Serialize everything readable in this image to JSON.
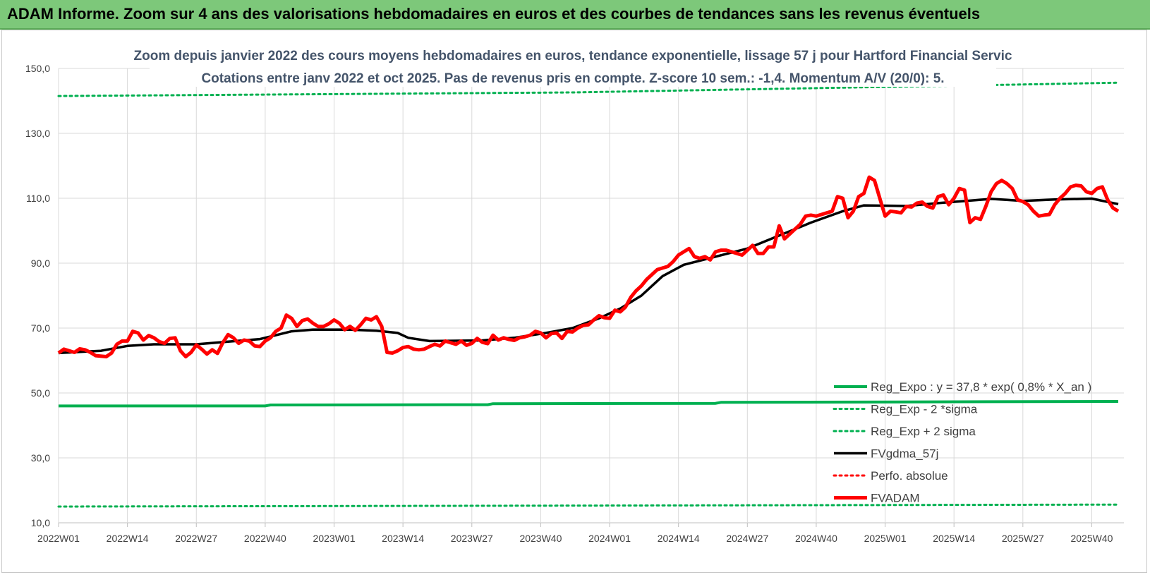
{
  "banner": {
    "title": "ADAM Informe. Zoom sur 4 ans des valorisations hebdomadaires en euros et des courbes de tendances sans les revenus éventuels"
  },
  "colors": {
    "banner_bg": "#7dc87a",
    "reg_expo": "#00b050",
    "sigma": "#00b050",
    "fvgdma": "#000000",
    "perfo": "#ff0000",
    "fvadam": "#ff0000",
    "grid": "#d9d9d9"
  },
  "chart_data": {
    "type": "line",
    "title_line1": "Zoom depuis janvier 2022 des cours moyens hebdomadaires en euros, tendance exponentielle, lissage 57 j pour Hartford Financial Servic",
    "title_line2": "Cotations entre janv 2022 et oct 2025. Pas de revenus pris en compte. Z-score 10 sem.: -1,4.  Momentum A/V (20/0): 5.",
    "ylim": [
      10,
      150
    ],
    "y_ticks": [
      "150,0",
      "130,0",
      "110,0",
      "90,0",
      "70,0",
      "50,0",
      "30,0",
      "10,0"
    ],
    "y_tick_values": [
      150,
      130,
      110,
      90,
      70,
      50,
      30,
      10
    ],
    "x_ticks": [
      "2022W01",
      "2022W14",
      "2022W27",
      "2022W40",
      "2023W01",
      "2023W14",
      "2023W27",
      "2023W40",
      "2024W01",
      "2024W14",
      "2024W27",
      "2024W40",
      "2025W01",
      "2025W14",
      "2025W27",
      "2025W40"
    ],
    "x_tick_index": [
      0,
      13,
      26,
      39,
      52,
      65,
      78,
      91,
      104,
      117,
      130,
      143,
      156,
      169,
      182,
      195
    ],
    "n_points": 201,
    "series": [
      {
        "name": "Reg_Expo : y = 37,8 * exp( 0,8% * X_an )",
        "style": "solid-green",
        "values": [
          [
            0,
            46.0
          ],
          [
            39,
            46.0
          ],
          [
            40,
            46.3
          ],
          [
            81,
            46.4
          ],
          [
            82,
            46.7
          ],
          [
            124,
            46.8
          ],
          [
            125,
            47.1
          ],
          [
            200,
            47.4
          ]
        ]
      },
      {
        "name": "Reg_Exp - 2 *sigma",
        "style": "dotted-green",
        "values": [
          [
            0,
            15.0
          ],
          [
            100,
            15.3
          ],
          [
            200,
            15.6
          ]
        ]
      },
      {
        "name": "Reg_Exp + 2 sigma",
        "style": "dotted-green",
        "values": [
          [
            0,
            141.5
          ],
          [
            97,
            142.6
          ],
          [
            180,
            145.0
          ],
          [
            200,
            145.6
          ]
        ]
      },
      {
        "name": "FVgdma_57j",
        "style": "solid-black",
        "values": [
          [
            0,
            62.3
          ],
          [
            8,
            63.0
          ],
          [
            13,
            64.5
          ],
          [
            18,
            65.0
          ],
          [
            26,
            65.0
          ],
          [
            32,
            65.8
          ],
          [
            38,
            66.6
          ],
          [
            44,
            69.0
          ],
          [
            48,
            69.5
          ],
          [
            55,
            69.5
          ],
          [
            60,
            69.2
          ],
          [
            64,
            68.5
          ],
          [
            66,
            67.0
          ],
          [
            70,
            66.0
          ],
          [
            80,
            66.2
          ],
          [
            86,
            67.0
          ],
          [
            92,
            68.5
          ],
          [
            97,
            70.0
          ],
          [
            102,
            73.0
          ],
          [
            106,
            76.0
          ],
          [
            110,
            80.0
          ],
          [
            114,
            86.0
          ],
          [
            118,
            89.5
          ],
          [
            124,
            92.0
          ],
          [
            130,
            94.5
          ],
          [
            136,
            98.5
          ],
          [
            142,
            102.5
          ],
          [
            148,
            106.0
          ],
          [
            152,
            107.8
          ],
          [
            160,
            107.6
          ],
          [
            166,
            108.5
          ],
          [
            176,
            109.8
          ],
          [
            182,
            109.2
          ],
          [
            188,
            109.6
          ],
          [
            195,
            109.9
          ],
          [
            200,
            108.2
          ]
        ]
      },
      {
        "name": "Perfo. absolue",
        "style": "dotted-red",
        "values": []
      },
      {
        "name": "FVADAM",
        "style": "solid-red-thick",
        "values": [
          [
            0,
            62.3
          ],
          [
            1,
            63.5
          ],
          [
            3,
            62.5
          ],
          [
            4,
            63.6
          ],
          [
            5,
            63.3
          ],
          [
            6,
            62.5
          ],
          [
            7,
            61.5
          ],
          [
            9,
            61.2
          ],
          [
            10,
            62.3
          ],
          [
            11,
            65.0
          ],
          [
            12,
            66.0
          ],
          [
            13,
            66.0
          ],
          [
            14,
            69.0
          ],
          [
            15,
            68.5
          ],
          [
            16,
            66.3
          ],
          [
            17,
            67.7
          ],
          [
            18,
            67.0
          ],
          [
            19,
            65.8
          ],
          [
            20,
            65.3
          ],
          [
            21,
            66.8
          ],
          [
            22,
            67.0
          ],
          [
            23,
            63.0
          ],
          [
            24,
            61.2
          ],
          [
            25,
            62.5
          ],
          [
            26,
            64.8
          ],
          [
            27,
            63.5
          ],
          [
            28,
            62.0
          ],
          [
            29,
            63.3
          ],
          [
            30,
            62.2
          ],
          [
            31,
            65.5
          ],
          [
            32,
            68.0
          ],
          [
            33,
            67.0
          ],
          [
            34,
            65.3
          ],
          [
            35,
            66.3
          ],
          [
            36,
            66.0
          ],
          [
            37,
            64.5
          ],
          [
            38,
            64.3
          ],
          [
            39,
            66.0
          ],
          [
            40,
            67.0
          ],
          [
            41,
            69.0
          ],
          [
            42,
            70.0
          ],
          [
            43,
            74.0
          ],
          [
            44,
            73.0
          ],
          [
            45,
            70.5
          ],
          [
            46,
            72.3
          ],
          [
            47,
            72.8
          ],
          [
            48,
            71.5
          ],
          [
            49,
            70.5
          ],
          [
            50,
            70.5
          ],
          [
            51,
            71.3
          ],
          [
            52,
            72.5
          ],
          [
            53,
            71.5
          ],
          [
            54,
            69.5
          ],
          [
            55,
            70.5
          ],
          [
            56,
            69.3
          ],
          [
            57,
            71.0
          ],
          [
            58,
            73.0
          ],
          [
            59,
            72.5
          ],
          [
            60,
            73.5
          ],
          [
            61,
            70.5
          ],
          [
            62,
            62.5
          ],
          [
            63,
            62.3
          ],
          [
            64,
            63.0
          ],
          [
            65,
            64.0
          ],
          [
            66,
            64.3
          ],
          [
            67,
            63.5
          ],
          [
            68,
            63.3
          ],
          [
            69,
            63.5
          ],
          [
            70,
            64.3
          ],
          [
            71,
            65.0
          ],
          [
            72,
            64.5
          ],
          [
            73,
            66.0
          ],
          [
            74,
            65.5
          ],
          [
            75,
            65.0
          ],
          [
            76,
            66.0
          ],
          [
            77,
            64.7
          ],
          [
            78,
            65.3
          ],
          [
            79,
            66.8
          ],
          [
            80,
            65.6
          ],
          [
            81,
            65.2
          ],
          [
            82,
            67.8
          ],
          [
            83,
            66.3
          ],
          [
            84,
            67.0
          ],
          [
            85,
            66.5
          ],
          [
            86,
            66.2
          ],
          [
            87,
            67.0
          ],
          [
            88,
            67.3
          ],
          [
            89,
            67.8
          ],
          [
            90,
            69.0
          ],
          [
            91,
            68.5
          ],
          [
            92,
            67.0
          ],
          [
            93,
            68.3
          ],
          [
            94,
            68.5
          ],
          [
            95,
            66.8
          ],
          [
            96,
            69.0
          ],
          [
            97,
            68.8
          ],
          [
            98,
            70.0
          ],
          [
            99,
            70.8
          ],
          [
            100,
            71.0
          ],
          [
            101,
            72.5
          ],
          [
            102,
            73.8
          ],
          [
            103,
            73.2
          ],
          [
            104,
            73.0
          ],
          [
            105,
            75.5
          ],
          [
            106,
            75.0
          ],
          [
            107,
            76.5
          ],
          [
            108,
            79.5
          ],
          [
            109,
            81.5
          ],
          [
            110,
            83.0
          ],
          [
            111,
            85.0
          ],
          [
            112,
            86.5
          ],
          [
            113,
            88.0
          ],
          [
            114,
            88.5
          ],
          [
            115,
            89.0
          ],
          [
            116,
            90.5
          ],
          [
            117,
            92.5
          ],
          [
            118,
            93.5
          ],
          [
            119,
            94.5
          ],
          [
            120,
            92.0
          ],
          [
            121,
            91.5
          ],
          [
            122,
            92.0
          ],
          [
            123,
            91.0
          ],
          [
            124,
            93.5
          ],
          [
            125,
            94.0
          ],
          [
            126,
            94.0
          ],
          [
            127,
            93.5
          ],
          [
            128,
            93.0
          ],
          [
            129,
            92.5
          ],
          [
            130,
            94.0
          ],
          [
            131,
            95.5
          ],
          [
            132,
            93.0
          ],
          [
            133,
            93.0
          ],
          [
            134,
            95.0
          ],
          [
            135,
            95.0
          ],
          [
            136,
            101.5
          ],
          [
            137,
            97.5
          ],
          [
            138,
            99.0
          ],
          [
            139,
            100.5
          ],
          [
            140,
            102.0
          ],
          [
            141,
            104.5
          ],
          [
            142,
            104.8
          ],
          [
            143,
            104.5
          ],
          [
            144,
            105.0
          ],
          [
            145,
            105.5
          ],
          [
            146,
            106.0
          ],
          [
            147,
            110.5
          ],
          [
            148,
            110.0
          ],
          [
            149,
            104.0
          ],
          [
            150,
            106.0
          ],
          [
            151,
            110.5
          ],
          [
            152,
            111.5
          ],
          [
            153,
            116.5
          ],
          [
            154,
            115.5
          ],
          [
            155,
            110.0
          ],
          [
            156,
            104.5
          ],
          [
            157,
            106.0
          ],
          [
            158,
            105.8
          ],
          [
            159,
            105.5
          ],
          [
            160,
            107.5
          ],
          [
            161,
            107.3
          ],
          [
            162,
            108.5
          ],
          [
            163,
            108.8
          ],
          [
            164,
            107.5
          ],
          [
            165,
            107.0
          ],
          [
            166,
            110.5
          ],
          [
            167,
            111.0
          ],
          [
            168,
            108.0
          ],
          [
            169,
            110.0
          ],
          [
            170,
            113.0
          ],
          [
            171,
            112.5
          ],
          [
            172,
            102.5
          ],
          [
            173,
            104.0
          ],
          [
            174,
            103.5
          ],
          [
            175,
            107.5
          ],
          [
            176,
            112.0
          ],
          [
            177,
            114.5
          ],
          [
            178,
            115.5
          ],
          [
            179,
            114.5
          ],
          [
            180,
            113.0
          ],
          [
            181,
            109.5
          ],
          [
            182,
            109.0
          ],
          [
            183,
            108.0
          ],
          [
            184,
            106.0
          ],
          [
            185,
            104.5
          ],
          [
            186,
            104.8
          ],
          [
            187,
            105.0
          ],
          [
            188,
            108.0
          ],
          [
            189,
            110.0
          ],
          [
            190,
            111.5
          ],
          [
            191,
            113.5
          ],
          [
            192,
            114.0
          ],
          [
            193,
            113.8
          ],
          [
            194,
            112.0
          ],
          [
            195,
            111.5
          ],
          [
            196,
            113.0
          ],
          [
            197,
            113.5
          ],
          [
            198,
            109.5
          ],
          [
            199,
            107.0
          ],
          [
            200,
            106.0
          ]
        ]
      }
    ]
  }
}
